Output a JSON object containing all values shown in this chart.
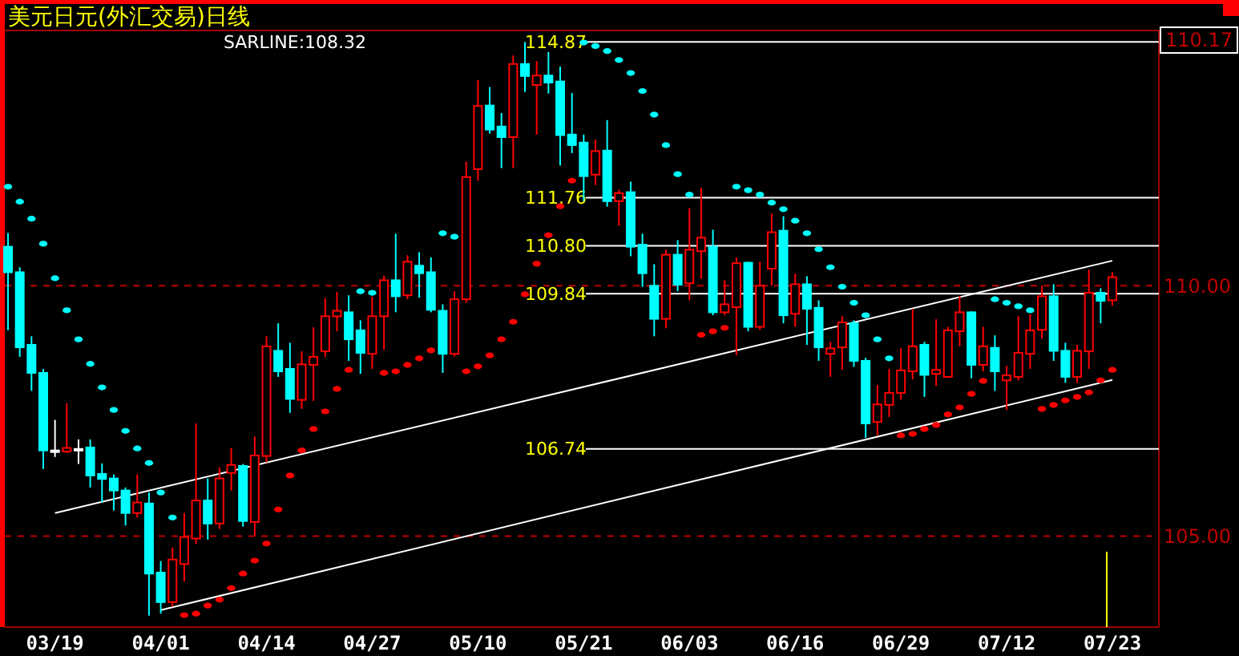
{
  "chart_data": {
    "type": "candlestick",
    "title": "美元日元(外汇交易)日线",
    "categories": [
      null,
      null,
      null,
      null,
      "03/19",
      null,
      null,
      null,
      null,
      null,
      null,
      null,
      null,
      "04/01",
      null,
      null,
      null,
      null,
      null,
      null,
      null,
      null,
      "04/14",
      null,
      null,
      null,
      null,
      null,
      null,
      null,
      null,
      "04/27",
      null,
      null,
      null,
      null,
      null,
      null,
      null,
      null,
      "05/10",
      null,
      null,
      null,
      null,
      null,
      null,
      null,
      null,
      "05/21",
      null,
      null,
      null,
      null,
      null,
      null,
      null,
      null,
      "06/03",
      null,
      null,
      null,
      null,
      null,
      null,
      null,
      null,
      "06/16",
      null,
      null,
      null,
      null,
      null,
      null,
      null,
      null,
      "06/29",
      null,
      null,
      null,
      null,
      null,
      null,
      null,
      null,
      "07/12",
      null,
      null,
      null,
      null,
      null,
      null,
      null,
      null,
      "07/23"
    ],
    "ohlc": [
      [
        110.78,
        111.05,
        109.11,
        110.27
      ],
      [
        110.27,
        110.37,
        108.58,
        108.77
      ],
      [
        108.82,
        108.99,
        107.9,
        108.26
      ],
      [
        108.26,
        108.34,
        106.34,
        106.71
      ],
      [
        106.71,
        107.32,
        106.58,
        106.71
      ],
      [
        106.69,
        107.65,
        106.66,
        106.76
      ],
      [
        106.74,
        106.93,
        106.44,
        106.74
      ],
      [
        106.77,
        106.93,
        105.97,
        106.21
      ],
      [
        106.24,
        106.45,
        105.67,
        106.14
      ],
      [
        106.15,
        106.23,
        105.51,
        105.91
      ],
      [
        105.91,
        105.97,
        105.21,
        105.46
      ],
      [
        105.46,
        106.23,
        105.37,
        105.67
      ],
      [
        105.65,
        105.87,
        103.41,
        104.25
      ],
      [
        104.27,
        104.5,
        103.45,
        103.68
      ],
      [
        103.68,
        104.77,
        103.59,
        104.53
      ],
      [
        104.44,
        105.46,
        104.09,
        104.98
      ],
      [
        104.95,
        107.25,
        104.84,
        105.71
      ],
      [
        105.71,
        106.15,
        104.93,
        105.25
      ],
      [
        105.25,
        106.37,
        105.14,
        106.15
      ],
      [
        106.26,
        106.76,
        105.91,
        106.42
      ],
      [
        106.4,
        106.44,
        105.19,
        105.3
      ],
      [
        105.28,
        106.99,
        105.0,
        106.61
      ],
      [
        106.6,
        108.99,
        106.47,
        108.79
      ],
      [
        108.7,
        109.25,
        108.18,
        108.29
      ],
      [
        108.34,
        108.86,
        107.46,
        107.74
      ],
      [
        107.72,
        108.69,
        107.54,
        108.43
      ],
      [
        108.42,
        109.17,
        107.7,
        108.58
      ],
      [
        108.69,
        109.75,
        108.58,
        109.39
      ],
      [
        109.39,
        109.88,
        109.09,
        109.5
      ],
      [
        109.47,
        109.81,
        108.5,
        108.93
      ],
      [
        109.11,
        109.31,
        108.24,
        108.66
      ],
      [
        108.64,
        109.78,
        108.34,
        109.39
      ],
      [
        109.39,
        110.2,
        108.72,
        110.11
      ],
      [
        110.11,
        111.04,
        109.47,
        109.79
      ],
      [
        109.81,
        110.61,
        109.73,
        110.48
      ],
      [
        110.4,
        110.67,
        109.76,
        110.25
      ],
      [
        110.27,
        110.57,
        109.47,
        109.52
      ],
      [
        109.5,
        109.63,
        108.26,
        108.64
      ],
      [
        108.64,
        109.89,
        108.59,
        109.73
      ],
      [
        109.73,
        112.48,
        109.66,
        112.17
      ],
      [
        112.33,
        114.11,
        112.1,
        113.59
      ],
      [
        113.6,
        113.97,
        113.04,
        113.12
      ],
      [
        113.18,
        113.45,
        112.35,
        112.97
      ],
      [
        112.97,
        114.6,
        112.35,
        114.43
      ],
      [
        114.43,
        114.87,
        113.87,
        114.19
      ],
      [
        114.01,
        114.49,
        113.02,
        114.2
      ],
      [
        114.2,
        114.67,
        113.84,
        114.06
      ],
      [
        114.08,
        114.38,
        112.4,
        113.01
      ],
      [
        113.02,
        113.85,
        112.65,
        112.81
      ],
      [
        112.86,
        113.02,
        111.69,
        112.19
      ],
      [
        112.22,
        112.92,
        112.01,
        112.69
      ],
      [
        112.7,
        113.31,
        111.58,
        111.69
      ],
      [
        111.69,
        111.92,
        111.2,
        111.85
      ],
      [
        111.87,
        112.08,
        110.59,
        110.78
      ],
      [
        110.82,
        111.04,
        109.98,
        110.25
      ],
      [
        110.0,
        110.43,
        108.99,
        109.34
      ],
      [
        109.34,
        110.72,
        109.15,
        110.62
      ],
      [
        110.62,
        110.91,
        109.89,
        110.02
      ],
      [
        110.05,
        111.55,
        109.71,
        110.72
      ],
      [
        110.69,
        111.96,
        110.14,
        110.96
      ],
      [
        110.78,
        111.12,
        109.41,
        109.47
      ],
      [
        109.47,
        110.11,
        109.41,
        109.63
      ],
      [
        109.57,
        110.56,
        108.61,
        110.45
      ],
      [
        110.46,
        110.48,
        109.09,
        109.18
      ],
      [
        109.18,
        110.48,
        109.12,
        110.0
      ],
      [
        110.34,
        111.44,
        110.0,
        111.07
      ],
      [
        111.1,
        111.39,
        109.25,
        109.41
      ],
      [
        109.44,
        110.24,
        109.18,
        110.03
      ],
      [
        110.03,
        110.19,
        108.82,
        109.54
      ],
      [
        109.56,
        109.71,
        108.5,
        108.77
      ],
      [
        108.64,
        108.88,
        108.18,
        108.75
      ],
      [
        108.77,
        109.39,
        108.32,
        109.27
      ],
      [
        109.25,
        109.31,
        108.38,
        108.5
      ],
      [
        108.5,
        108.56,
        106.96,
        107.25
      ],
      [
        107.28,
        108.02,
        107.01,
        107.63
      ],
      [
        107.62,
        108.34,
        107.38,
        107.86
      ],
      [
        107.86,
        108.75,
        107.72,
        108.31
      ],
      [
        108.29,
        109.54,
        108.13,
        108.79
      ],
      [
        108.82,
        108.88,
        107.78,
        108.22
      ],
      [
        108.24,
        109.33,
        108.0,
        108.32
      ],
      [
        108.18,
        109.18,
        108.18,
        109.11
      ],
      [
        109.09,
        109.79,
        108.79,
        109.47
      ],
      [
        109.47,
        109.49,
        108.15,
        108.42
      ],
      [
        108.42,
        109.18,
        108.29,
        108.79
      ],
      [
        108.76,
        109.01,
        107.9,
        108.29
      ],
      [
        108.11,
        108.4,
        107.52,
        108.21
      ],
      [
        108.18,
        109.39,
        108.11,
        108.66
      ],
      [
        108.64,
        109.43,
        108.34,
        109.11
      ],
      [
        109.12,
        110.0,
        108.95,
        109.79
      ],
      [
        109.79,
        110.03,
        108.5,
        108.7
      ],
      [
        108.7,
        108.86,
        108.06,
        108.18
      ],
      [
        108.18,
        108.82,
        108.06,
        108.7
      ],
      [
        108.69,
        110.32,
        108.34,
        109.86
      ],
      [
        109.86,
        109.95,
        109.25,
        109.7
      ],
      [
        109.71,
        110.27,
        109.6,
        110.17
      ]
    ],
    "colors": [
      "#00ffff",
      "#00ffff",
      "#00ffff",
      "#00ffff",
      "#ffffff",
      "#ff0000",
      "#ffffff",
      "#00ffff",
      "#00ffff",
      "#00ffff",
      "#00ffff",
      "#ff0000",
      "#00ffff",
      "#00ffff",
      "#ff0000",
      "#ff0000",
      "#ff0000",
      "#00ffff",
      "#ff0000",
      "#ff0000",
      "#00ffff",
      "#ff0000",
      "#ff0000",
      "#00ffff",
      "#00ffff",
      "#ff0000",
      "#ff0000",
      "#ff0000",
      "#ff0000",
      "#00ffff",
      "#00ffff",
      "#ff0000",
      "#ff0000",
      "#00ffff",
      "#ff0000",
      "#00ffff",
      "#00ffff",
      "#00ffff",
      "#ff0000",
      "#ff0000",
      "#ff0000",
      "#00ffff",
      "#00ffff",
      "#ff0000",
      "#00ffff",
      "#ff0000",
      "#00ffff",
      "#00ffff",
      "#00ffff",
      "#00ffff",
      "#ff0000",
      "#00ffff",
      "#ff0000",
      "#00ffff",
      "#00ffff",
      "#00ffff",
      "#ff0000",
      "#00ffff",
      "#ff0000",
      "#ff0000",
      "#00ffff",
      "#ff0000",
      "#ff0000",
      "#00ffff",
      "#ff0000",
      "#ff0000",
      "#00ffff",
      "#ff0000",
      "#00ffff",
      "#00ffff",
      "#ff0000",
      "#ff0000",
      "#00ffff",
      "#00ffff",
      "#ff0000",
      "#ff0000",
      "#ff0000",
      "#ff0000",
      "#00ffff",
      "#ff0000",
      "#ff0000",
      "#ff0000",
      "#00ffff",
      "#ff0000",
      "#00ffff",
      "#ff0000",
      "#ff0000",
      "#ff0000",
      "#ff0000",
      "#00ffff",
      "#00ffff",
      "#ff0000",
      "#ff0000",
      "#00ffff",
      "#ff0000"
    ],
    "series": [
      {
        "type": "scatter",
        "marker": "circle",
        "values": [
          111.98,
          111.68,
          111.34,
          110.84,
          110.15,
          109.51,
          108.93,
          108.44,
          107.97,
          107.52,
          107.1,
          106.75,
          106.46,
          105.87,
          105.37,
          103.42,
          103.45,
          103.61,
          103.73,
          103.96,
          104.25,
          104.51,
          104.85,
          105.53,
          106.21,
          106.71,
          107.14,
          107.49,
          107.94,
          108.32,
          109.89,
          109.86,
          108.26,
          108.29,
          108.42,
          108.55,
          108.71,
          111.05,
          110.98,
          108.29,
          108.39,
          108.61,
          108.93,
          109.28,
          109.83,
          110.44,
          111.01,
          111.59,
          112.1,
          114.86,
          114.79,
          114.69,
          114.51,
          114.25,
          113.89,
          113.42,
          112.81,
          112.23,
          111.82,
          109.02,
          109.09,
          109.16,
          111.98,
          111.91,
          111.82,
          111.66,
          111.53,
          111.3,
          111.05,
          110.73,
          110.37,
          109.98,
          109.66,
          109.41,
          108.93,
          108.55,
          107.01,
          107.04,
          107.14,
          107.22,
          107.43,
          107.57,
          107.84,
          108.1,
          109.73,
          109.66,
          109.59,
          109.51,
          107.54,
          107.62,
          107.71,
          107.78,
          107.87,
          108.11,
          108.32
        ],
        "colors": [
          "#00ffff",
          "#00ffff",
          "#00ffff",
          "#00ffff",
          "#00ffff",
          "#00ffff",
          "#00ffff",
          "#00ffff",
          "#00ffff",
          "#00ffff",
          "#00ffff",
          "#00ffff",
          "#00ffff",
          "#00ffff",
          "#00ffff",
          "#ff0000",
          "#ff0000",
          "#ff0000",
          "#ff0000",
          "#ff0000",
          "#ff0000",
          "#ff0000",
          "#ff0000",
          "#ff0000",
          "#ff0000",
          "#ff0000",
          "#ff0000",
          "#ff0000",
          "#ff0000",
          "#ff0000",
          "#00ffff",
          "#00ffff",
          "#ff0000",
          "#ff0000",
          "#ff0000",
          "#ff0000",
          "#ff0000",
          "#00ffff",
          "#00ffff",
          "#ff0000",
          "#ff0000",
          "#ff0000",
          "#ff0000",
          "#ff0000",
          "#ff0000",
          "#ff0000",
          "#ff0000",
          "#ff0000",
          "#ff0000",
          "#00ffff",
          "#00ffff",
          "#00ffff",
          "#00ffff",
          "#00ffff",
          "#00ffff",
          "#00ffff",
          "#00ffff",
          "#00ffff",
          "#00ffff",
          "#ff0000",
          "#ff0000",
          "#ff0000",
          "#00ffff",
          "#00ffff",
          "#00ffff",
          "#00ffff",
          "#00ffff",
          "#00ffff",
          "#00ffff",
          "#00ffff",
          "#00ffff",
          "#00ffff",
          "#00ffff",
          "#00ffff",
          "#00ffff",
          "#00ffff",
          "#ff0000",
          "#ff0000",
          "#ff0000",
          "#ff0000",
          "#ff0000",
          "#ff0000",
          "#ff0000",
          "#ff0000",
          "#00ffff",
          "#00ffff",
          "#00ffff",
          "#00ffff",
          "#ff0000",
          "#ff0000",
          "#ff0000",
          "#ff0000",
          "#ff0000",
          "#ff0000",
          "#ff0000"
        ]
      },
      {
        "type": "line",
        "color": "#ffffff",
        "x": [
          "03/19",
          "07/23"
        ],
        "values": [
          105.46,
          110.5
        ]
      },
      {
        "type": "line",
        "color": "#ffffff",
        "x": [
          "04/01",
          "07/23"
        ],
        "values": [
          103.52,
          108.12
        ]
      }
    ],
    "ylim": [
      103.18,
      115.1
    ],
    "yticks": [
      {
        "value": 110,
        "label": "110.00"
      },
      {
        "value": 105,
        "label": "105.00"
      }
    ],
    "grid": "y",
    "ref_lines": [
      {
        "axis": "y",
        "value": 114.87,
        "label": "114.87",
        "color": "#ffffff"
      },
      {
        "axis": "y",
        "value": 111.76,
        "label": "111.76",
        "color": "#ffffff"
      },
      {
        "axis": "y",
        "value": 110.8,
        "label": "110.80",
        "color": "#ffffff"
      },
      {
        "axis": "y",
        "value": 109.84,
        "label": "109.84",
        "color": "#ffffff"
      },
      {
        "axis": "y",
        "value": 106.74,
        "label": "106.74",
        "color": "#ffffff"
      }
    ],
    "annotations": [
      "SARLINE:108.32",
      "110.17"
    ]
  }
}
